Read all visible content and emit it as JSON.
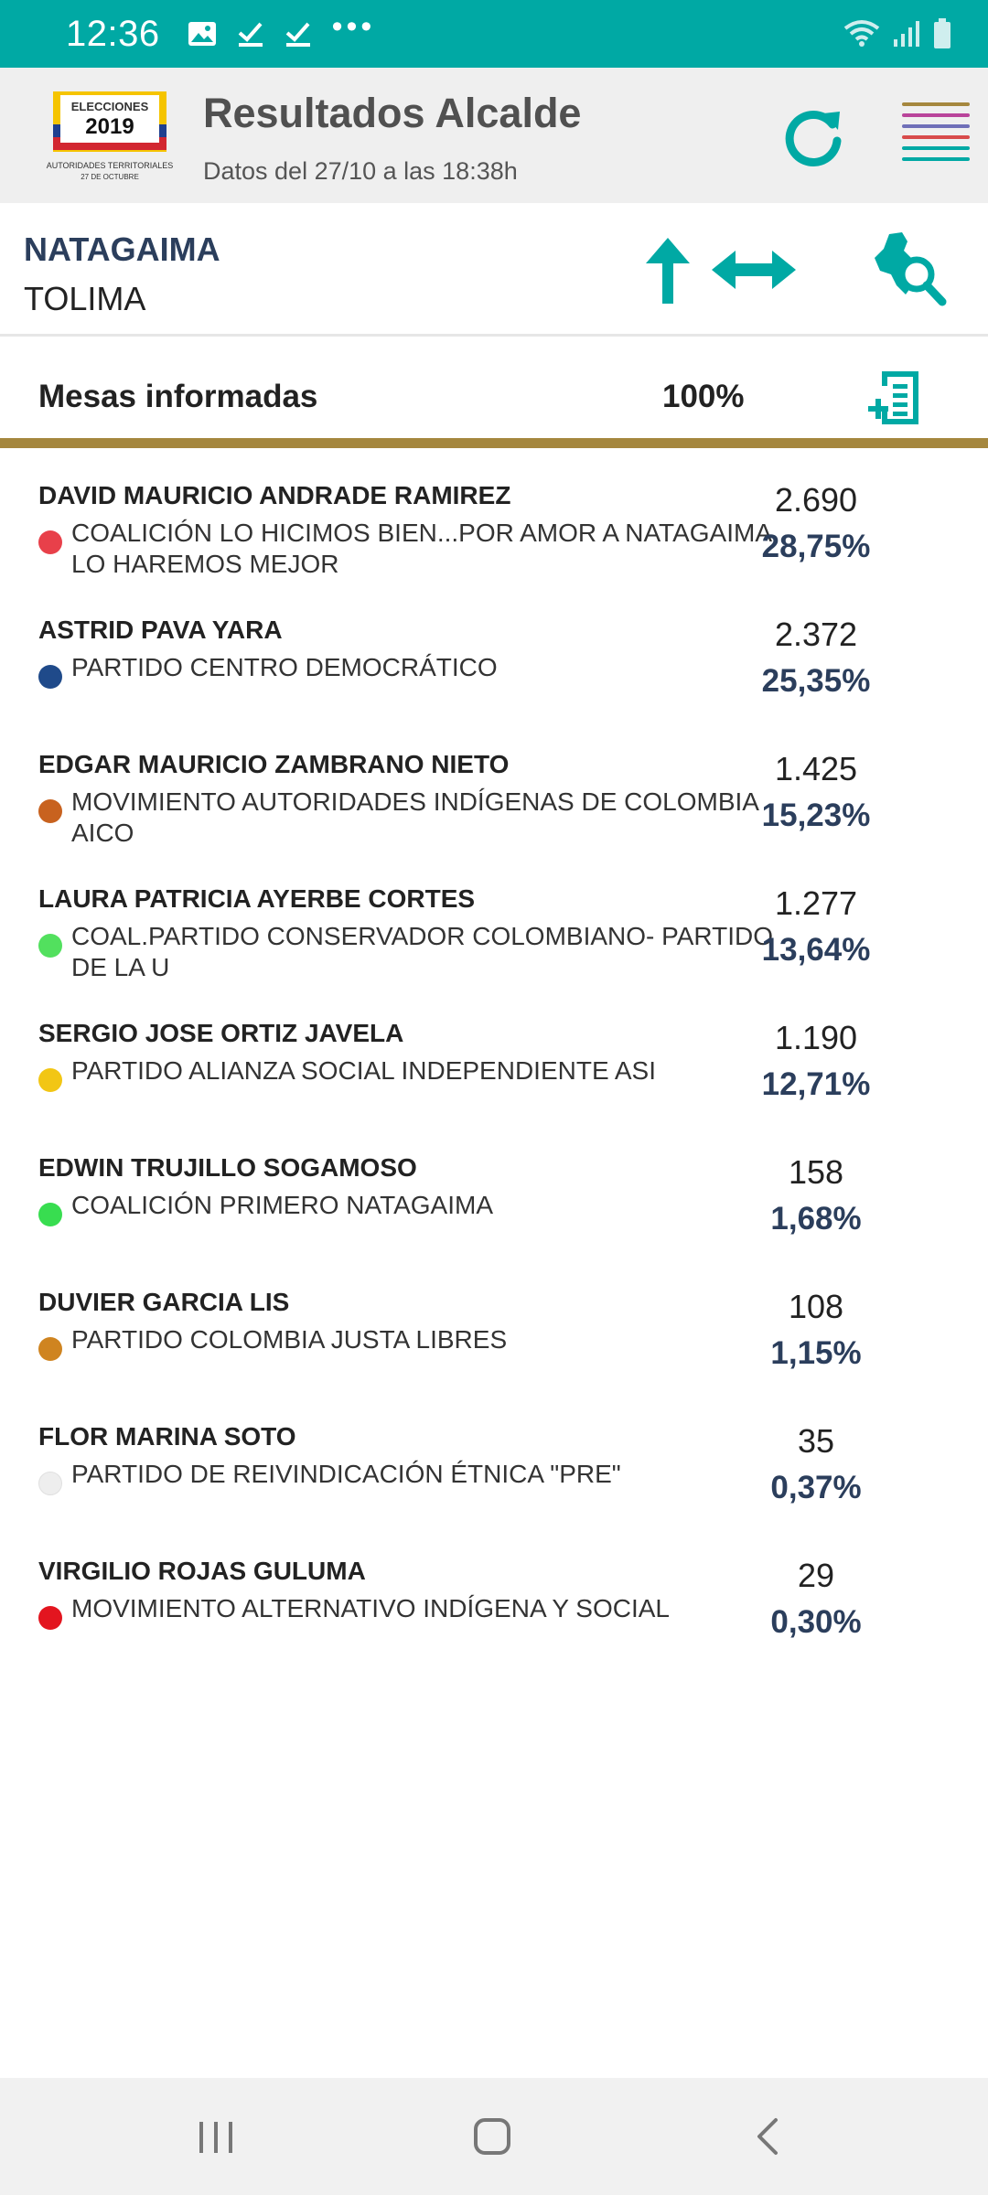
{
  "status_bar": {
    "time": "12:36",
    "dots": "•••",
    "left_icons": [
      "image-icon",
      "check-icon",
      "check-icon",
      "more-icon"
    ],
    "right_icons": [
      "wifi-icon",
      "signal-icon",
      "battery-icon"
    ]
  },
  "header": {
    "logo": {
      "line1": "ELECCIONES",
      "line2": "2019",
      "line3": "AUTORIDADES TERRITORIALES",
      "line4": "27 DE OCTUBRE"
    },
    "title": "Resultados Alcalde",
    "subtitle": "Datos del 27/10 a las 18:38h",
    "menu_colors": [
      "#a5873e",
      "#b9449a",
      "#6f6fb8",
      "#d84b4b",
      "#00a9a4",
      "#00a9a4"
    ]
  },
  "location": {
    "municipality": "NATAGAIMA",
    "department": "TOLIMA"
  },
  "mesas": {
    "label": "Mesas informadas",
    "value": "100%"
  },
  "candidates": [
    {
      "name": "DAVID MAURICIO ANDRADE RAMIREZ",
      "party": "COALICIÓN LO HICIMOS BIEN...POR AMOR A NATAGAIMA LO HAREMOS MEJOR",
      "votes": "2.690",
      "pct": "28,75%",
      "color": "#e8404a"
    },
    {
      "name": "ASTRID PAVA YARA",
      "party": "PARTIDO CENTRO DEMOCRÁTICO",
      "votes": "2.372",
      "pct": "25,35%",
      "color": "#1f4a8a"
    },
    {
      "name": "EDGAR MAURICIO ZAMBRANO NIETO",
      "party": "MOVIMIENTO AUTORIDADES INDÍGENAS DE COLOMBIA AICO",
      "votes": "1.425",
      "pct": "15,23%",
      "color": "#c8621f"
    },
    {
      "name": "LAURA PATRICIA AYERBE CORTES",
      "party": "COAL.PARTIDO CONSERVADOR COLOMBIANO- PARTIDO DE LA U",
      "votes": "1.277",
      "pct": "13,64%",
      "color": "#52e05e"
    },
    {
      "name": "SERGIO JOSE ORTIZ JAVELA",
      "party": "PARTIDO ALIANZA SOCIAL INDEPENDIENTE ASI",
      "votes": "1.190",
      "pct": "12,71%",
      "color": "#f2c614"
    },
    {
      "name": "EDWIN TRUJILLO SOGAMOSO",
      "party": "COALICIÓN PRIMERO NATAGAIMA",
      "votes": "158",
      "pct": "1,68%",
      "color": "#38dd50"
    },
    {
      "name": "DUVIER GARCIA LIS",
      "party": "PARTIDO COLOMBIA JUSTA LIBRES",
      "votes": "108",
      "pct": "1,15%",
      "color": "#cf8420"
    },
    {
      "name": "FLOR MARINA SOTO",
      "party": "PARTIDO DE REIVINDICACIÓN ÉTNICA \"PRE\"",
      "votes": "35",
      "pct": "0,37%",
      "color": "#eeeeee"
    },
    {
      "name": "VIRGILIO ROJAS GULUMA",
      "party": "MOVIMIENTO ALTERNATIVO INDÍGENA Y SOCIAL",
      "votes": "29",
      "pct": "0,30%",
      "color": "#e3151f"
    }
  ],
  "nav": {
    "buttons": [
      "recent-apps-icon",
      "home-icon",
      "back-icon"
    ]
  }
}
